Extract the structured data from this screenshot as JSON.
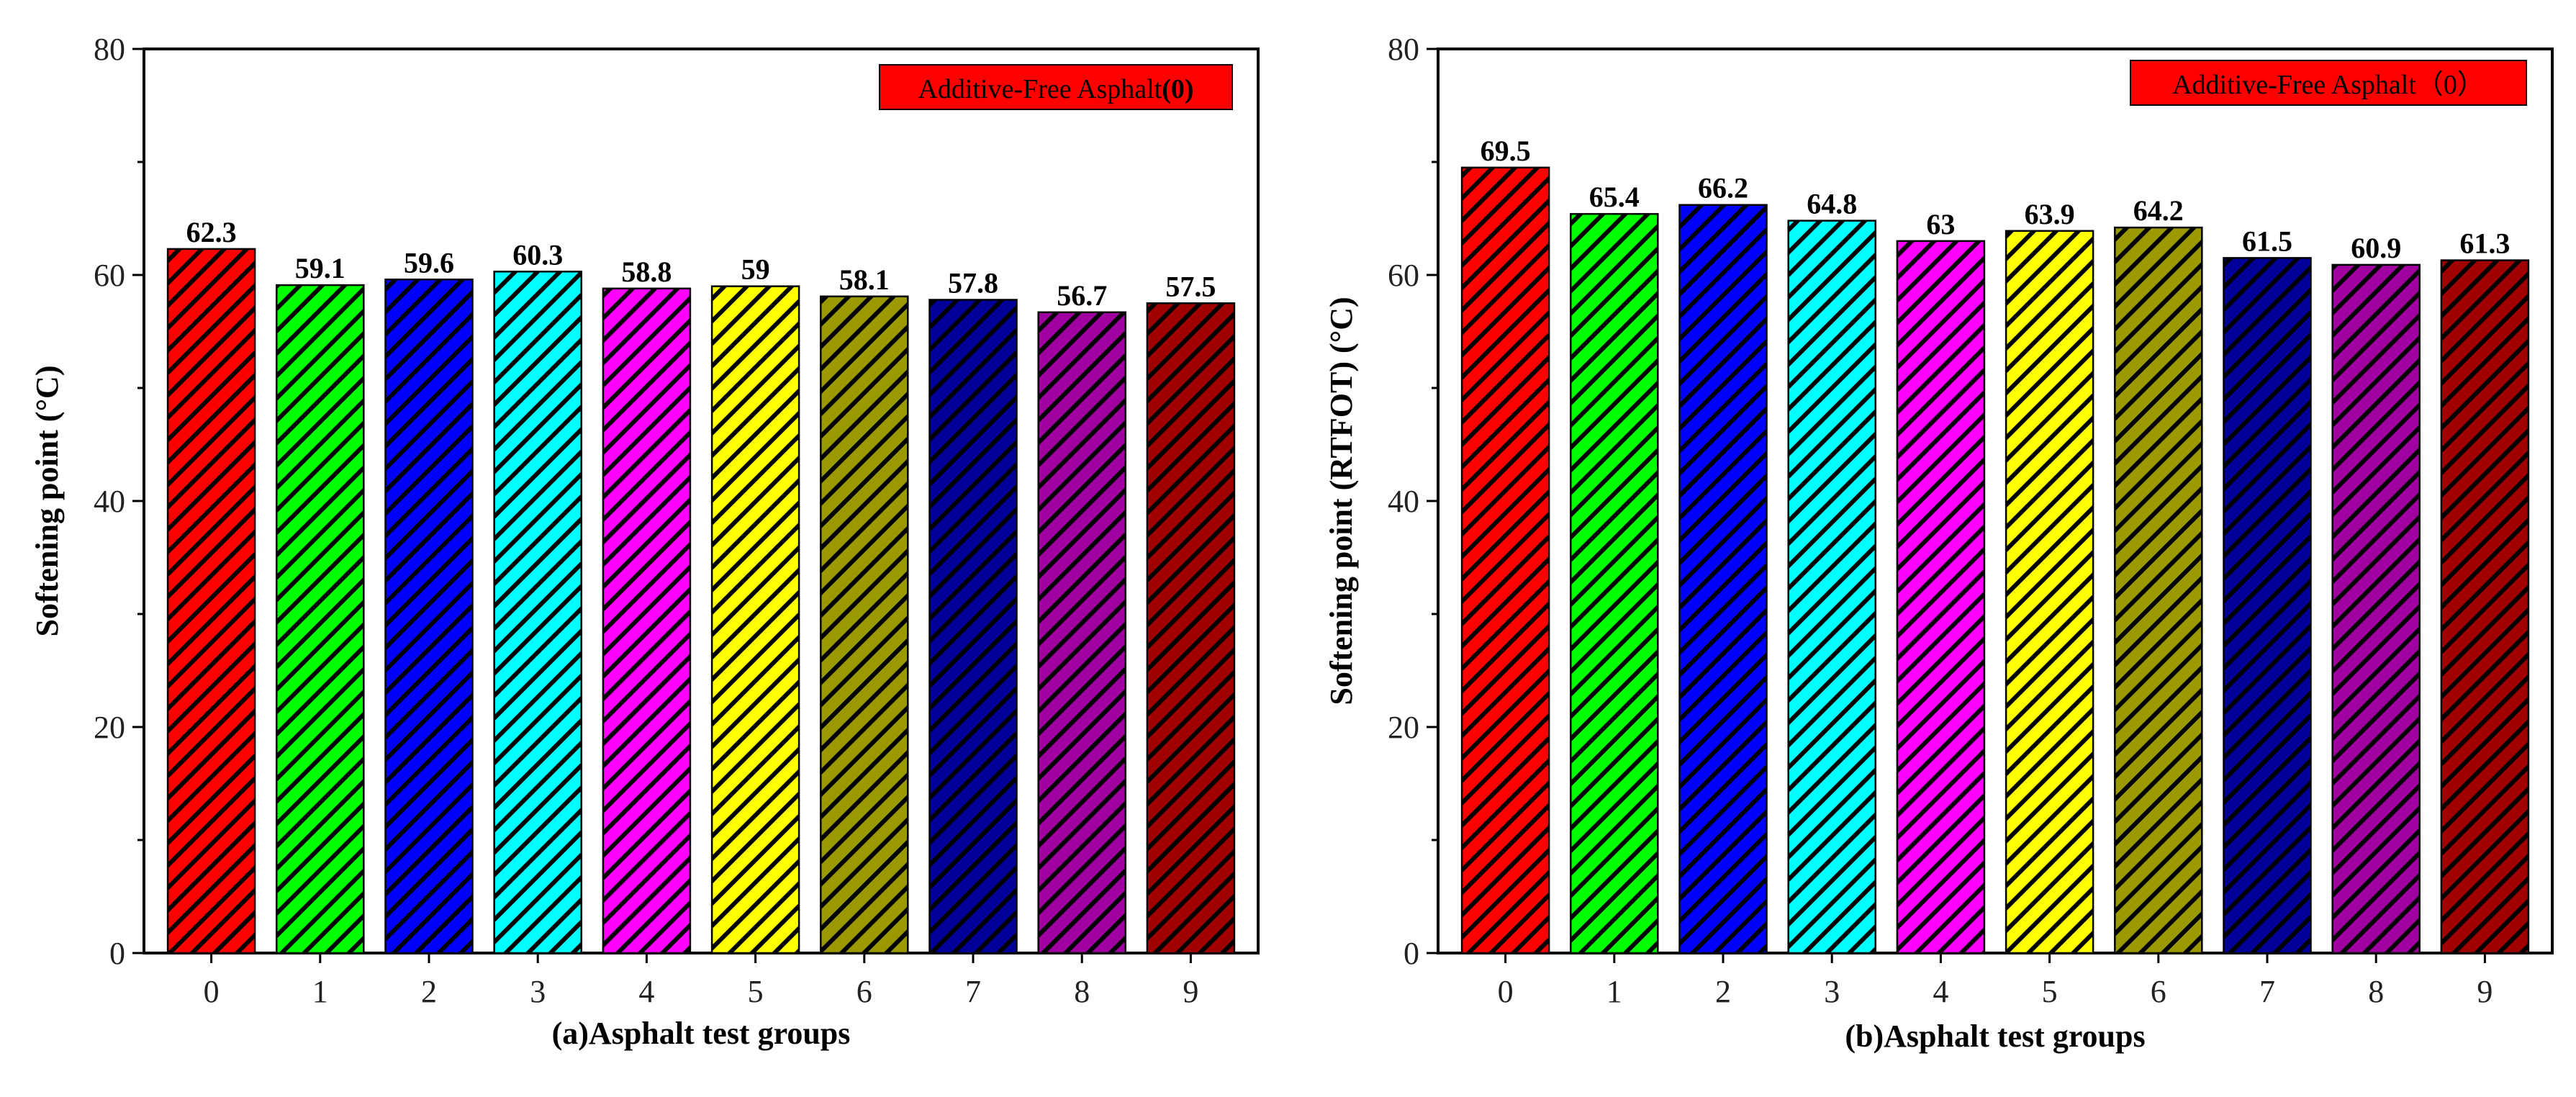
{
  "chart_data": [
    {
      "type": "bar",
      "panel": "a",
      "categories": [
        "0",
        "1",
        "2",
        "3",
        "4",
        "5",
        "6",
        "7",
        "8",
        "9"
      ],
      "values": [
        62.3,
        59.1,
        59.6,
        60.3,
        58.8,
        59,
        58.1,
        57.8,
        56.7,
        57.5
      ],
      "value_labels": [
        "62.3",
        "59.1",
        "59.6",
        "60.3",
        "58.8",
        "59",
        "58.1",
        "57.8",
        "56.7",
        "57.5"
      ],
      "xlabel": "(a)Asphalt test groups",
      "ylabel": "Softening point (°C)",
      "ylim": [
        0,
        80
      ],
      "yticks": [
        "0",
        "20",
        "40",
        "60",
        "80"
      ],
      "legend": {
        "prefix": "Additive-Free Asphalt",
        "suffix": "(0)",
        "placement": "top-right"
      }
    },
    {
      "type": "bar",
      "panel": "b",
      "categories": [
        "0",
        "1",
        "2",
        "3",
        "4",
        "5",
        "6",
        "7",
        "8",
        "9"
      ],
      "values": [
        69.5,
        65.4,
        66.2,
        64.8,
        63,
        63.9,
        64.2,
        61.5,
        60.9,
        61.3
      ],
      "value_labels": [
        "69.5",
        "65.4",
        "66.2",
        "64.8",
        "63",
        "63.9",
        "64.2",
        "61.5",
        "60.9",
        "61.3"
      ],
      "xlabel": "(b)Asphalt test groups",
      "ylabel": "Softening point (RTFOT) (°C)",
      "ylim": [
        0,
        80
      ],
      "yticks": [
        "0",
        "20",
        "40",
        "60",
        "80"
      ],
      "legend": {
        "prefix": "Additive-Free Asphalt",
        "suffix": "（0）",
        "placement": "top-right"
      }
    }
  ],
  "bar_colors": [
    "#ff0000",
    "#00ff00",
    "#0000ff",
    "#00ffff",
    "#ff00ff",
    "#ffff00",
    "#9a9a00",
    "#000099",
    "#a100a1",
    "#a10000"
  ],
  "legend_color": "#ff0000"
}
